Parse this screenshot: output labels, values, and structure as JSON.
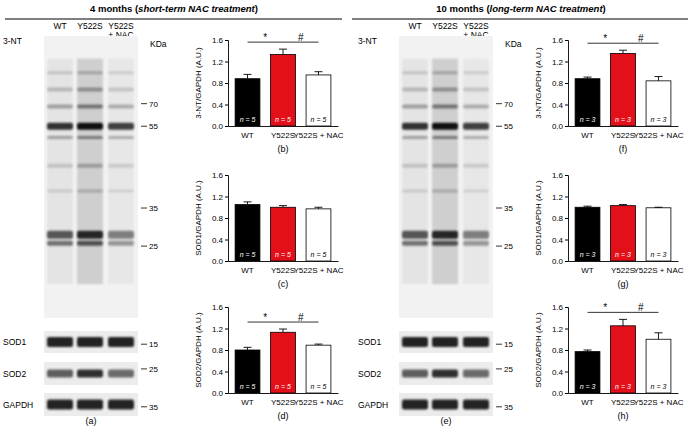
{
  "headers": [
    {
      "parts": [
        "4 months (",
        "short-term NAC treatment",
        ")"
      ]
    },
    {
      "parts": [
        "10 months (",
        "long-term NAC treatment",
        ")"
      ]
    }
  ],
  "blots": [
    {
      "panel_label": "(a)",
      "lanes": [
        [
          "WT"
        ],
        [
          "Y522S"
        ],
        [
          "Y522S",
          "+ NAC"
        ]
      ],
      "unit": "KDa",
      "strips": [
        {
          "name": "3-NT",
          "markers": [
            70,
            55,
            35,
            25
          ]
        },
        {
          "name": "SOD1",
          "markers": [
            15
          ]
        },
        {
          "name": "SOD2",
          "markers": [
            25
          ]
        },
        {
          "name": "GAPDH",
          "markers": [
            35
          ]
        }
      ]
    },
    {
      "panel_label": "(e)",
      "lanes": [
        [
          "WT"
        ],
        [
          "Y522S"
        ],
        [
          "Y522S",
          "+ NAC"
        ]
      ],
      "unit": "KDa",
      "strips": [
        {
          "name": "3-NT",
          "markers": [
            70,
            55,
            35,
            25
          ]
        },
        {
          "name": "SOD1",
          "markers": [
            15
          ]
        },
        {
          "name": "SOD2",
          "markers": [
            25
          ]
        },
        {
          "name": "GAPDH",
          "markers": [
            35
          ]
        }
      ]
    }
  ],
  "chart_data": [
    {
      "type": "bar",
      "panel_label": "(b)",
      "categories": [
        "WT",
        "Y522S",
        "Y522S + NAC"
      ],
      "values": [
        0.88,
        1.33,
        0.95
      ],
      "errors": [
        0.08,
        0.1,
        0.06
      ],
      "colors": [
        "#000000",
        "#e3101a",
        "#ffffff"
      ],
      "y_label": "3-NT/GAPDH (A.U.)",
      "ylim": [
        0,
        1.6
      ],
      "yticks": [
        {
          "value": 0,
          "label": "0.0"
        },
        0.4,
        0.8,
        1.2,
        1.6
      ],
      "annotations": [
        "n = 5",
        "n = 5",
        "n = 5"
      ],
      "significance": [
        {
          "between": [
            "WT",
            "Y522S"
          ],
          "label": "*"
        },
        {
          "between": [
            "Y522S",
            "Y522S + NAC"
          ],
          "label": "#"
        }
      ]
    },
    {
      "type": "bar",
      "panel_label": "(c)",
      "categories": [
        "WT",
        "Y522S",
        "Y522S + NAC"
      ],
      "values": [
        1.05,
        1.0,
        0.97
      ],
      "errors": [
        0.05,
        0.03,
        0.03
      ],
      "colors": [
        "#000000",
        "#e3101a",
        "#ffffff"
      ],
      "y_label": "SOD1/GAPDH (A.U.)",
      "ylim": [
        0,
        1.6
      ],
      "yticks": [
        {
          "value": 0,
          "label": "0.0"
        },
        0.4,
        0.8,
        1.2,
        1.6
      ],
      "annotations": [
        "n = 5",
        "n = 5",
        "n = 5"
      ],
      "significance": []
    },
    {
      "type": "bar",
      "panel_label": "(d)",
      "categories": [
        "WT",
        "Y522S",
        "Y522S + NAC"
      ],
      "values": [
        0.8,
        1.13,
        0.89
      ],
      "errors": [
        0.05,
        0.06,
        0.02
      ],
      "colors": [
        "#000000",
        "#e3101a",
        "#ffffff"
      ],
      "y_label": "SOD2/GAPDH (A.U.)",
      "ylim": [
        0,
        1.6
      ],
      "yticks": [
        {
          "value": 0,
          "label": "0.0"
        },
        0.4,
        0.8,
        1.2,
        1.6
      ],
      "annotations": [
        "n = 5",
        "n = 5",
        "n = 5"
      ],
      "significance": [
        {
          "between": [
            "WT",
            "Y522S"
          ],
          "label": "*"
        },
        {
          "between": [
            "Y522S",
            "Y522S + NAC"
          ],
          "label": "#"
        }
      ]
    },
    {
      "type": "bar",
      "panel_label": "(f)",
      "categories": [
        "WT",
        "Y522S",
        "Y522S + NAC"
      ],
      "values": [
        0.88,
        1.35,
        0.84
      ],
      "errors": [
        0.03,
        0.06,
        0.08
      ],
      "colors": [
        "#000000",
        "#e3101a",
        "#ffffff"
      ],
      "y_label": "3-NT/GAPDH (A.U.)",
      "ylim": [
        0,
        1.6
      ],
      "yticks": [
        {
          "value": 0,
          "label": "0.0"
        },
        0.4,
        0.8,
        1.2,
        1.6
      ],
      "annotations": [
        "n = 3",
        "n = 3",
        "n = 3"
      ],
      "significance": [
        {
          "between": [
            "WT",
            "Y522S"
          ],
          "label": "*"
        },
        {
          "between": [
            "Y522S",
            "Y522S + NAC"
          ],
          "label": "#"
        }
      ]
    },
    {
      "type": "bar",
      "panel_label": "(g)",
      "categories": [
        "WT",
        "Y522S",
        "Y522S + NAC"
      ],
      "values": [
        1.0,
        1.03,
        0.99
      ],
      "errors": [
        0.02,
        0.02,
        0.01
      ],
      "colors": [
        "#000000",
        "#e3101a",
        "#ffffff"
      ],
      "y_label": "SOD1/GAPDH (A.U.)",
      "ylim": [
        0,
        1.6
      ],
      "yticks": [
        {
          "value": 0,
          "label": "0.0"
        },
        0.4,
        0.8,
        1.2,
        1.6
      ],
      "annotations": [
        "n = 3",
        "n = 3",
        "n = 3"
      ],
      "significance": []
    },
    {
      "type": "bar",
      "panel_label": "(h)",
      "categories": [
        "WT",
        "Y522S",
        "Y522S + NAC"
      ],
      "values": [
        0.77,
        1.25,
        1.0
      ],
      "errors": [
        0.03,
        0.12,
        0.12
      ],
      "colors": [
        "#000000",
        "#e3101a",
        "#ffffff"
      ],
      "y_label": "SOD2/GAPDH (A.U.)",
      "ylim": [
        0,
        1.6
      ],
      "yticks": [
        {
          "value": 0,
          "label": "0.0"
        },
        0.4,
        0.8,
        1.2,
        1.6
      ],
      "annotations": [
        "n = 3",
        "n = 3",
        "n = 3"
      ],
      "significance": [
        {
          "between": [
            "WT",
            "Y522S"
          ],
          "label": "*"
        },
        {
          "between": [
            "Y522S",
            "Y522S + NAC"
          ],
          "label": "#"
        }
      ]
    }
  ]
}
